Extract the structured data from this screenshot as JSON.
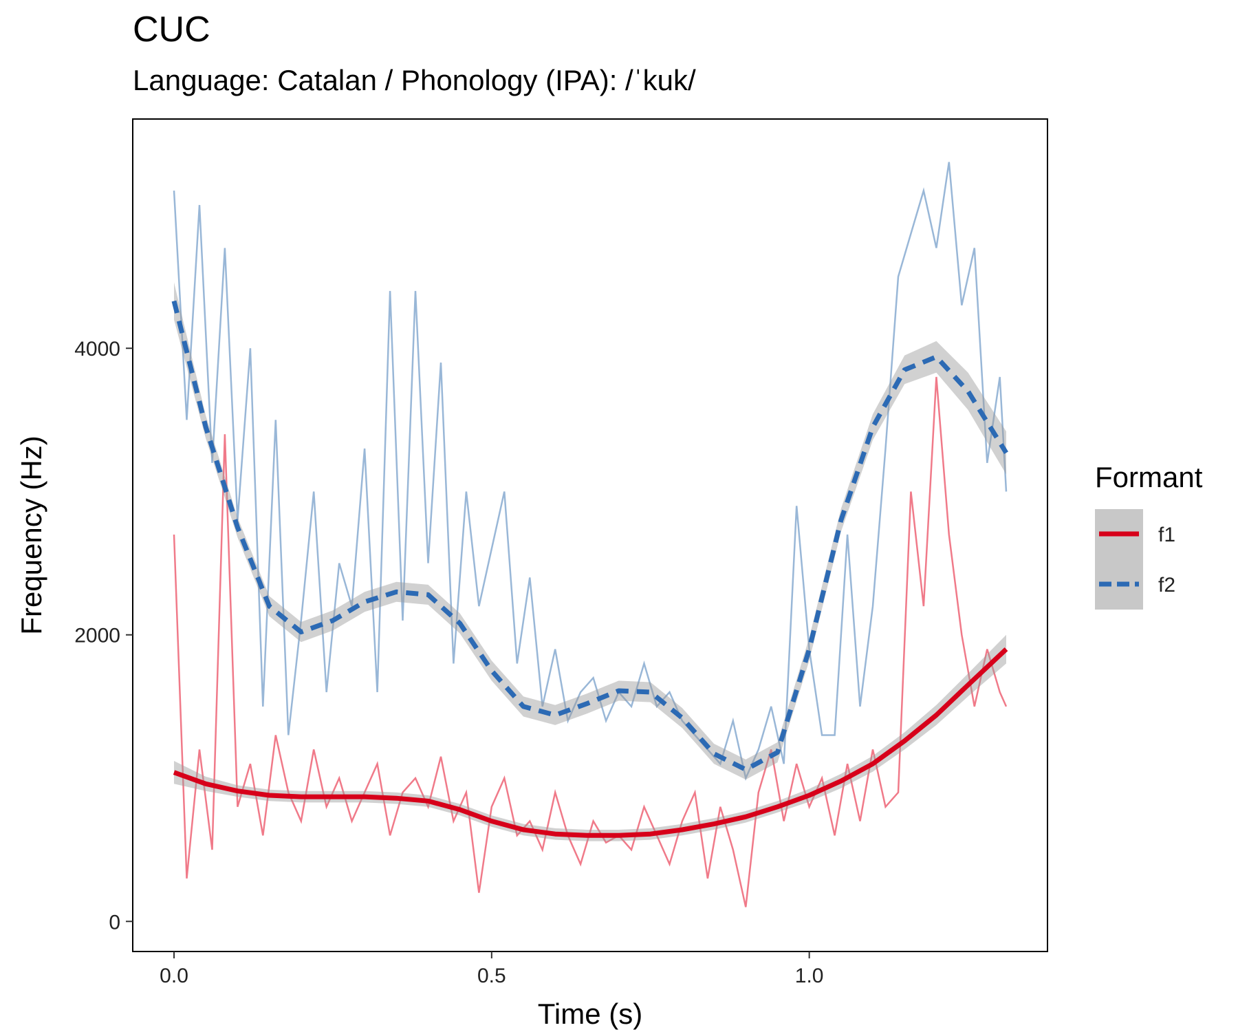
{
  "chart_data": {
    "type": "line",
    "title": "CUC",
    "subtitle": "Language: Catalan / Phonology (IPA): /ˈkuk/",
    "xlabel": "Time (s)",
    "ylabel": "Frequency (Hz)",
    "xlim": [
      -0.065,
      1.375
    ],
    "ylim": [
      -210,
      5600
    ],
    "xticks": [
      0.0,
      0.5,
      1.0
    ],
    "xtick_labels": [
      "0.0",
      "0.5",
      "1.0"
    ],
    "yticks": [
      0,
      2000,
      4000
    ],
    "ytick_labels": [
      "0",
      "2000",
      "4000"
    ],
    "grid": false,
    "legend": {
      "title": "Formant",
      "position": "right",
      "entries": [
        "f1",
        "f2"
      ]
    },
    "series": [
      {
        "name": "f1",
        "raw_color": "#EE6B7C",
        "smooth_color": "#D7001A",
        "line_style": "solid",
        "smooth": {
          "x": [
            0.0,
            0.05,
            0.1,
            0.15,
            0.2,
            0.25,
            0.3,
            0.35,
            0.4,
            0.45,
            0.5,
            0.55,
            0.6,
            0.65,
            0.7,
            0.75,
            0.8,
            0.85,
            0.9,
            0.95,
            1.0,
            1.05,
            1.1,
            1.15,
            1.2,
            1.25,
            1.31
          ],
          "y": [
            1040,
            960,
            910,
            880,
            870,
            870,
            870,
            860,
            840,
            780,
            700,
            640,
            610,
            600,
            600,
            610,
            640,
            680,
            730,
            800,
            880,
            980,
            1100,
            1260,
            1440,
            1650,
            1900
          ],
          "band_halfwidth": [
            80,
            50,
            40,
            40,
            40,
            40,
            40,
            40,
            40,
            40,
            40,
            40,
            40,
            40,
            40,
            40,
            40,
            40,
            40,
            40,
            45,
            50,
            55,
            60,
            70,
            80,
            100
          ]
        },
        "raw": {
          "x": [
            0.0,
            0.02,
            0.04,
            0.06,
            0.08,
            0.1,
            0.12,
            0.14,
            0.16,
            0.18,
            0.2,
            0.22,
            0.24,
            0.26,
            0.28,
            0.3,
            0.32,
            0.34,
            0.36,
            0.38,
            0.4,
            0.42,
            0.44,
            0.46,
            0.48,
            0.5,
            0.52,
            0.54,
            0.56,
            0.58,
            0.6,
            0.62,
            0.64,
            0.66,
            0.68,
            0.7,
            0.72,
            0.74,
            0.76,
            0.78,
            0.8,
            0.82,
            0.84,
            0.86,
            0.88,
            0.9,
            0.92,
            0.94,
            0.96,
            0.98,
            1.0,
            1.02,
            1.04,
            1.06,
            1.08,
            1.1,
            1.12,
            1.14,
            1.16,
            1.18,
            1.2,
            1.22,
            1.24,
            1.26,
            1.28,
            1.3,
            1.31
          ],
          "y": [
            2700,
            300,
            1200,
            500,
            3400,
            800,
            1100,
            600,
            1300,
            900,
            700,
            1200,
            800,
            1000,
            700,
            900,
            1100,
            600,
            900,
            1000,
            800,
            1150,
            700,
            900,
            200,
            800,
            1000,
            600,
            700,
            500,
            900,
            600,
            400,
            700,
            550,
            600,
            500,
            800,
            600,
            400,
            700,
            900,
            300,
            800,
            500,
            100,
            900,
            1200,
            700,
            1100,
            800,
            1000,
            600,
            1100,
            700,
            1200,
            800,
            900,
            3000,
            2200,
            3800,
            2700,
            2000,
            1500,
            1900,
            1600,
            1500
          ]
        }
      },
      {
        "name": "f2",
        "raw_color": "#8EAFD3",
        "smooth_color": "#2C6AB4",
        "line_style": "dashed",
        "smooth": {
          "x": [
            0.0,
            0.05,
            0.1,
            0.15,
            0.2,
            0.25,
            0.3,
            0.35,
            0.4,
            0.45,
            0.5,
            0.55,
            0.6,
            0.65,
            0.7,
            0.75,
            0.8,
            0.85,
            0.9,
            0.95,
            1.0,
            1.05,
            1.1,
            1.15,
            1.2,
            1.25,
            1.31
          ],
          "y": [
            4330,
            3450,
            2750,
            2200,
            2020,
            2100,
            2230,
            2300,
            2280,
            2080,
            1750,
            1500,
            1440,
            1520,
            1610,
            1600,
            1420,
            1170,
            1060,
            1180,
            1900,
            2800,
            3450,
            3850,
            3940,
            3700,
            3270
          ],
          "band_halfwidth": [
            130,
            80,
            70,
            70,
            70,
            70,
            70,
            70,
            70,
            70,
            70,
            70,
            70,
            70,
            70,
            70,
            70,
            70,
            70,
            70,
            80,
            80,
            90,
            100,
            110,
            130,
            150
          ]
        },
        "raw": {
          "x": [
            0.0,
            0.02,
            0.04,
            0.06,
            0.08,
            0.1,
            0.12,
            0.14,
            0.16,
            0.18,
            0.2,
            0.22,
            0.24,
            0.26,
            0.28,
            0.3,
            0.32,
            0.34,
            0.36,
            0.38,
            0.4,
            0.42,
            0.44,
            0.46,
            0.48,
            0.5,
            0.52,
            0.54,
            0.56,
            0.58,
            0.6,
            0.62,
            0.64,
            0.66,
            0.68,
            0.7,
            0.72,
            0.74,
            0.76,
            0.78,
            0.8,
            0.82,
            0.84,
            0.86,
            0.88,
            0.9,
            0.92,
            0.94,
            0.96,
            0.98,
            1.0,
            1.02,
            1.04,
            1.06,
            1.08,
            1.1,
            1.12,
            1.14,
            1.16,
            1.18,
            1.2,
            1.22,
            1.24,
            1.26,
            1.28,
            1.3,
            1.31
          ],
          "y": [
            5100,
            3500,
            5000,
            3200,
            4700,
            2800,
            4000,
            1500,
            3500,
            1300,
            2100,
            3000,
            1600,
            2500,
            2200,
            3300,
            1600,
            4400,
            2100,
            4400,
            2500,
            3900,
            1800,
            3000,
            2200,
            2600,
            3000,
            1800,
            2400,
            1500,
            1900,
            1400,
            1600,
            1700,
            1400,
            1600,
            1500,
            1800,
            1500,
            1600,
            1400,
            1300,
            1200,
            1100,
            1400,
            1000,
            1200,
            1500,
            1100,
            2900,
            1900,
            1300,
            1300,
            2700,
            1500,
            2200,
            3300,
            4500,
            4800,
            5100,
            4700,
            5300,
            4300,
            4700,
            3200,
            3800,
            3000
          ]
        }
      }
    ]
  }
}
